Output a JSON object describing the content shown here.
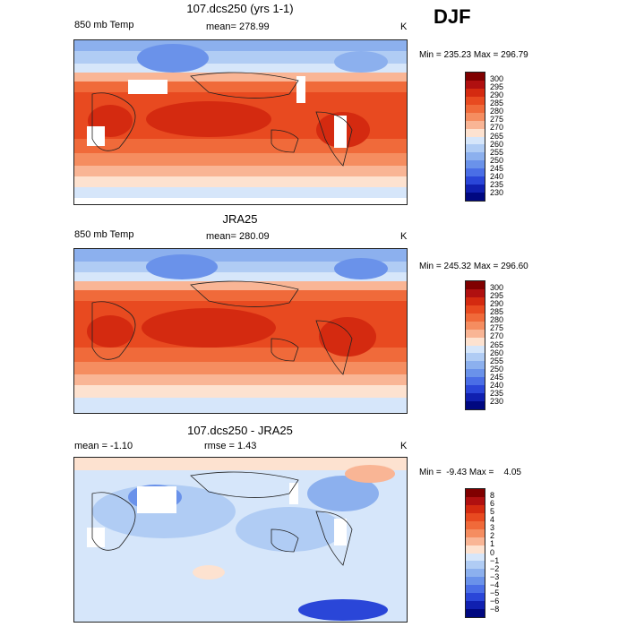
{
  "season": "DJF",
  "panels": [
    {
      "title": "107.dcs250 (yrs 1-1)",
      "left_label": "850 mb Temp",
      "center_label": "mean= 278.99",
      "units": "K",
      "range": "Min = 235.23 Max = 296.79",
      "colorbar_labels": [
        "300",
        "295",
        "290",
        "285",
        "280",
        "275",
        "270",
        "265",
        "260",
        "255",
        "250",
        "245",
        "240",
        "235",
        "230"
      ]
    },
    {
      "title": "JRA25",
      "left_label": "850 mb Temp",
      "center_label": "mean= 280.09",
      "units": "K",
      "range": "Min = 245.32 Max = 296.60",
      "colorbar_labels": [
        "300",
        "295",
        "290",
        "285",
        "280",
        "275",
        "270",
        "265",
        "260",
        "255",
        "250",
        "245",
        "240",
        "235",
        "230"
      ]
    },
    {
      "title": "107.dcs250 - JRA25",
      "left_label": "mean =   -1.10",
      "center_label": "rmse =    1.43",
      "units": "K",
      "range": "Min =  -9.43 Max =    4.05",
      "colorbar_labels": [
        "8",
        "6",
        "5",
        "4",
        "3",
        "2",
        "1",
        "0",
        "−1",
        "−2",
        "−3",
        "−4",
        "−5",
        "−6",
        "−8"
      ]
    }
  ],
  "colors": {
    "temp_scale": [
      "#800000",
      "#b01010",
      "#d42a10",
      "#e84a20",
      "#f06a3a",
      "#f58d60",
      "#f9b595",
      "#fde2d0",
      "#d6e6fa",
      "#b0ccf4",
      "#8cb0ee",
      "#6a92ea",
      "#4a6ee6",
      "#2a46d8",
      "#1020b0",
      "#000880"
    ],
    "diff_scale": [
      "#800000",
      "#b01010",
      "#d42a10",
      "#e84a20",
      "#f06a3a",
      "#f58d60",
      "#f9b595",
      "#fde2d0",
      "#d6e6fa",
      "#b0ccf4",
      "#8cb0ee",
      "#6a92ea",
      "#4a6ee6",
      "#2a46d8",
      "#1020b0",
      "#000880"
    ]
  },
  "chart_data": [
    {
      "type": "heatmap",
      "title": "107.dcs250 (yrs 1-1)",
      "variable": "850 mb Temp",
      "units": "K",
      "mean": 278.99,
      "min": 235.23,
      "max": 296.79,
      "levels": [
        230,
        235,
        240,
        245,
        250,
        255,
        260,
        265,
        270,
        275,
        280,
        285,
        290,
        295,
        300
      ]
    },
    {
      "type": "heatmap",
      "title": "JRA25",
      "variable": "850 mb Temp",
      "units": "K",
      "mean": 280.09,
      "min": 245.32,
      "max": 296.6,
      "levels": [
        230,
        235,
        240,
        245,
        250,
        255,
        260,
        265,
        270,
        275,
        280,
        285,
        290,
        295,
        300
      ]
    },
    {
      "type": "heatmap",
      "title": "107.dcs250 - JRA25",
      "units": "K",
      "mean": -1.1,
      "rmse": 1.43,
      "min": -9.43,
      "max": 4.05,
      "levels": [
        -8,
        -6,
        -5,
        -4,
        -3,
        -2,
        -1,
        0,
        1,
        2,
        3,
        4,
        5,
        6,
        8
      ]
    }
  ]
}
